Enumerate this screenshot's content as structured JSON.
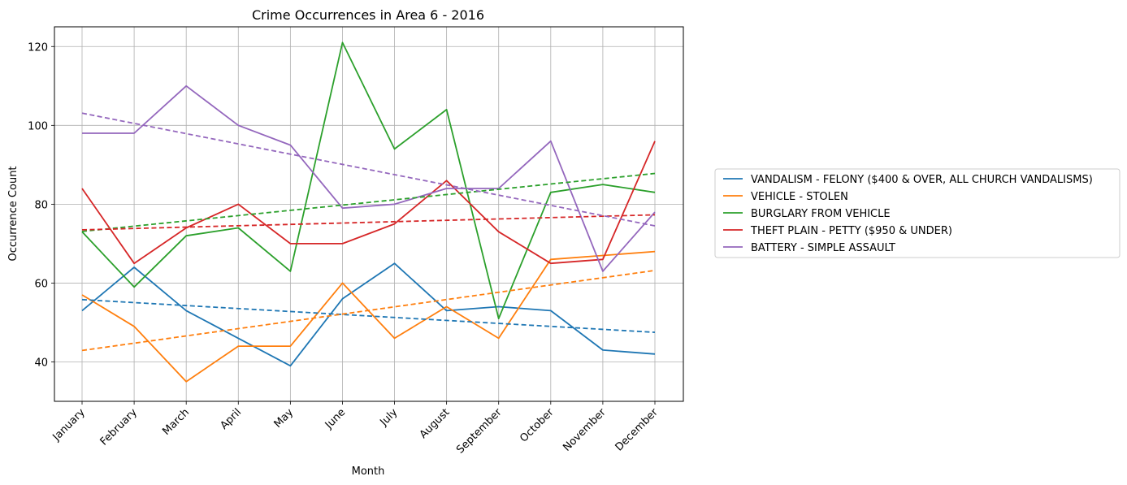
{
  "chart_data": {
    "type": "line",
    "title": "Crime Occurrences in Area 6 - 2016",
    "xlabel": "Month",
    "ylabel": "Occurrence Count",
    "categories": [
      "January",
      "February",
      "March",
      "April",
      "May",
      "June",
      "July",
      "August",
      "September",
      "October",
      "November",
      "December"
    ],
    "ylim": [
      30,
      125
    ],
    "yticks": [
      40,
      60,
      80,
      100,
      120
    ],
    "grid": true,
    "legend_position": "right",
    "series": [
      {
        "name": "VANDALISM - FELONY ($400 & OVER, ALL CHURCH VANDALISMS)",
        "color": "#1f77b4",
        "values": [
          53,
          64,
          53,
          46,
          39,
          56,
          65,
          53,
          54,
          53,
          43,
          42
        ],
        "trend": [
          55.8,
          47.5
        ]
      },
      {
        "name": "VEHICLE - STOLEN",
        "color": "#ff7f0e",
        "values": [
          57,
          49,
          35,
          44,
          44,
          60,
          46,
          54,
          46,
          66,
          67,
          68
        ],
        "trend": [
          42.9,
          63.2
        ]
      },
      {
        "name": "BURGLARY FROM VEHICLE",
        "color": "#2ca02c",
        "values": [
          73,
          59,
          72,
          74,
          63,
          121,
          94,
          104,
          51,
          83,
          85,
          83
        ],
        "trend": [
          73.1,
          87.8
        ]
      },
      {
        "name": "THEFT PLAIN - PETTY ($950 & UNDER)",
        "color": "#d62728",
        "values": [
          84,
          65,
          74,
          80,
          70,
          70,
          75,
          86,
          73,
          65,
          66,
          96
        ],
        "trend": [
          73.5,
          77.3
        ]
      },
      {
        "name": "BATTERY - SIMPLE ASSAULT",
        "color": "#9467bd",
        "values": [
          98,
          98,
          110,
          100,
          95,
          79,
          80,
          84,
          84,
          96,
          63,
          78
        ],
        "trend": [
          103.1,
          74.5
        ]
      }
    ]
  }
}
